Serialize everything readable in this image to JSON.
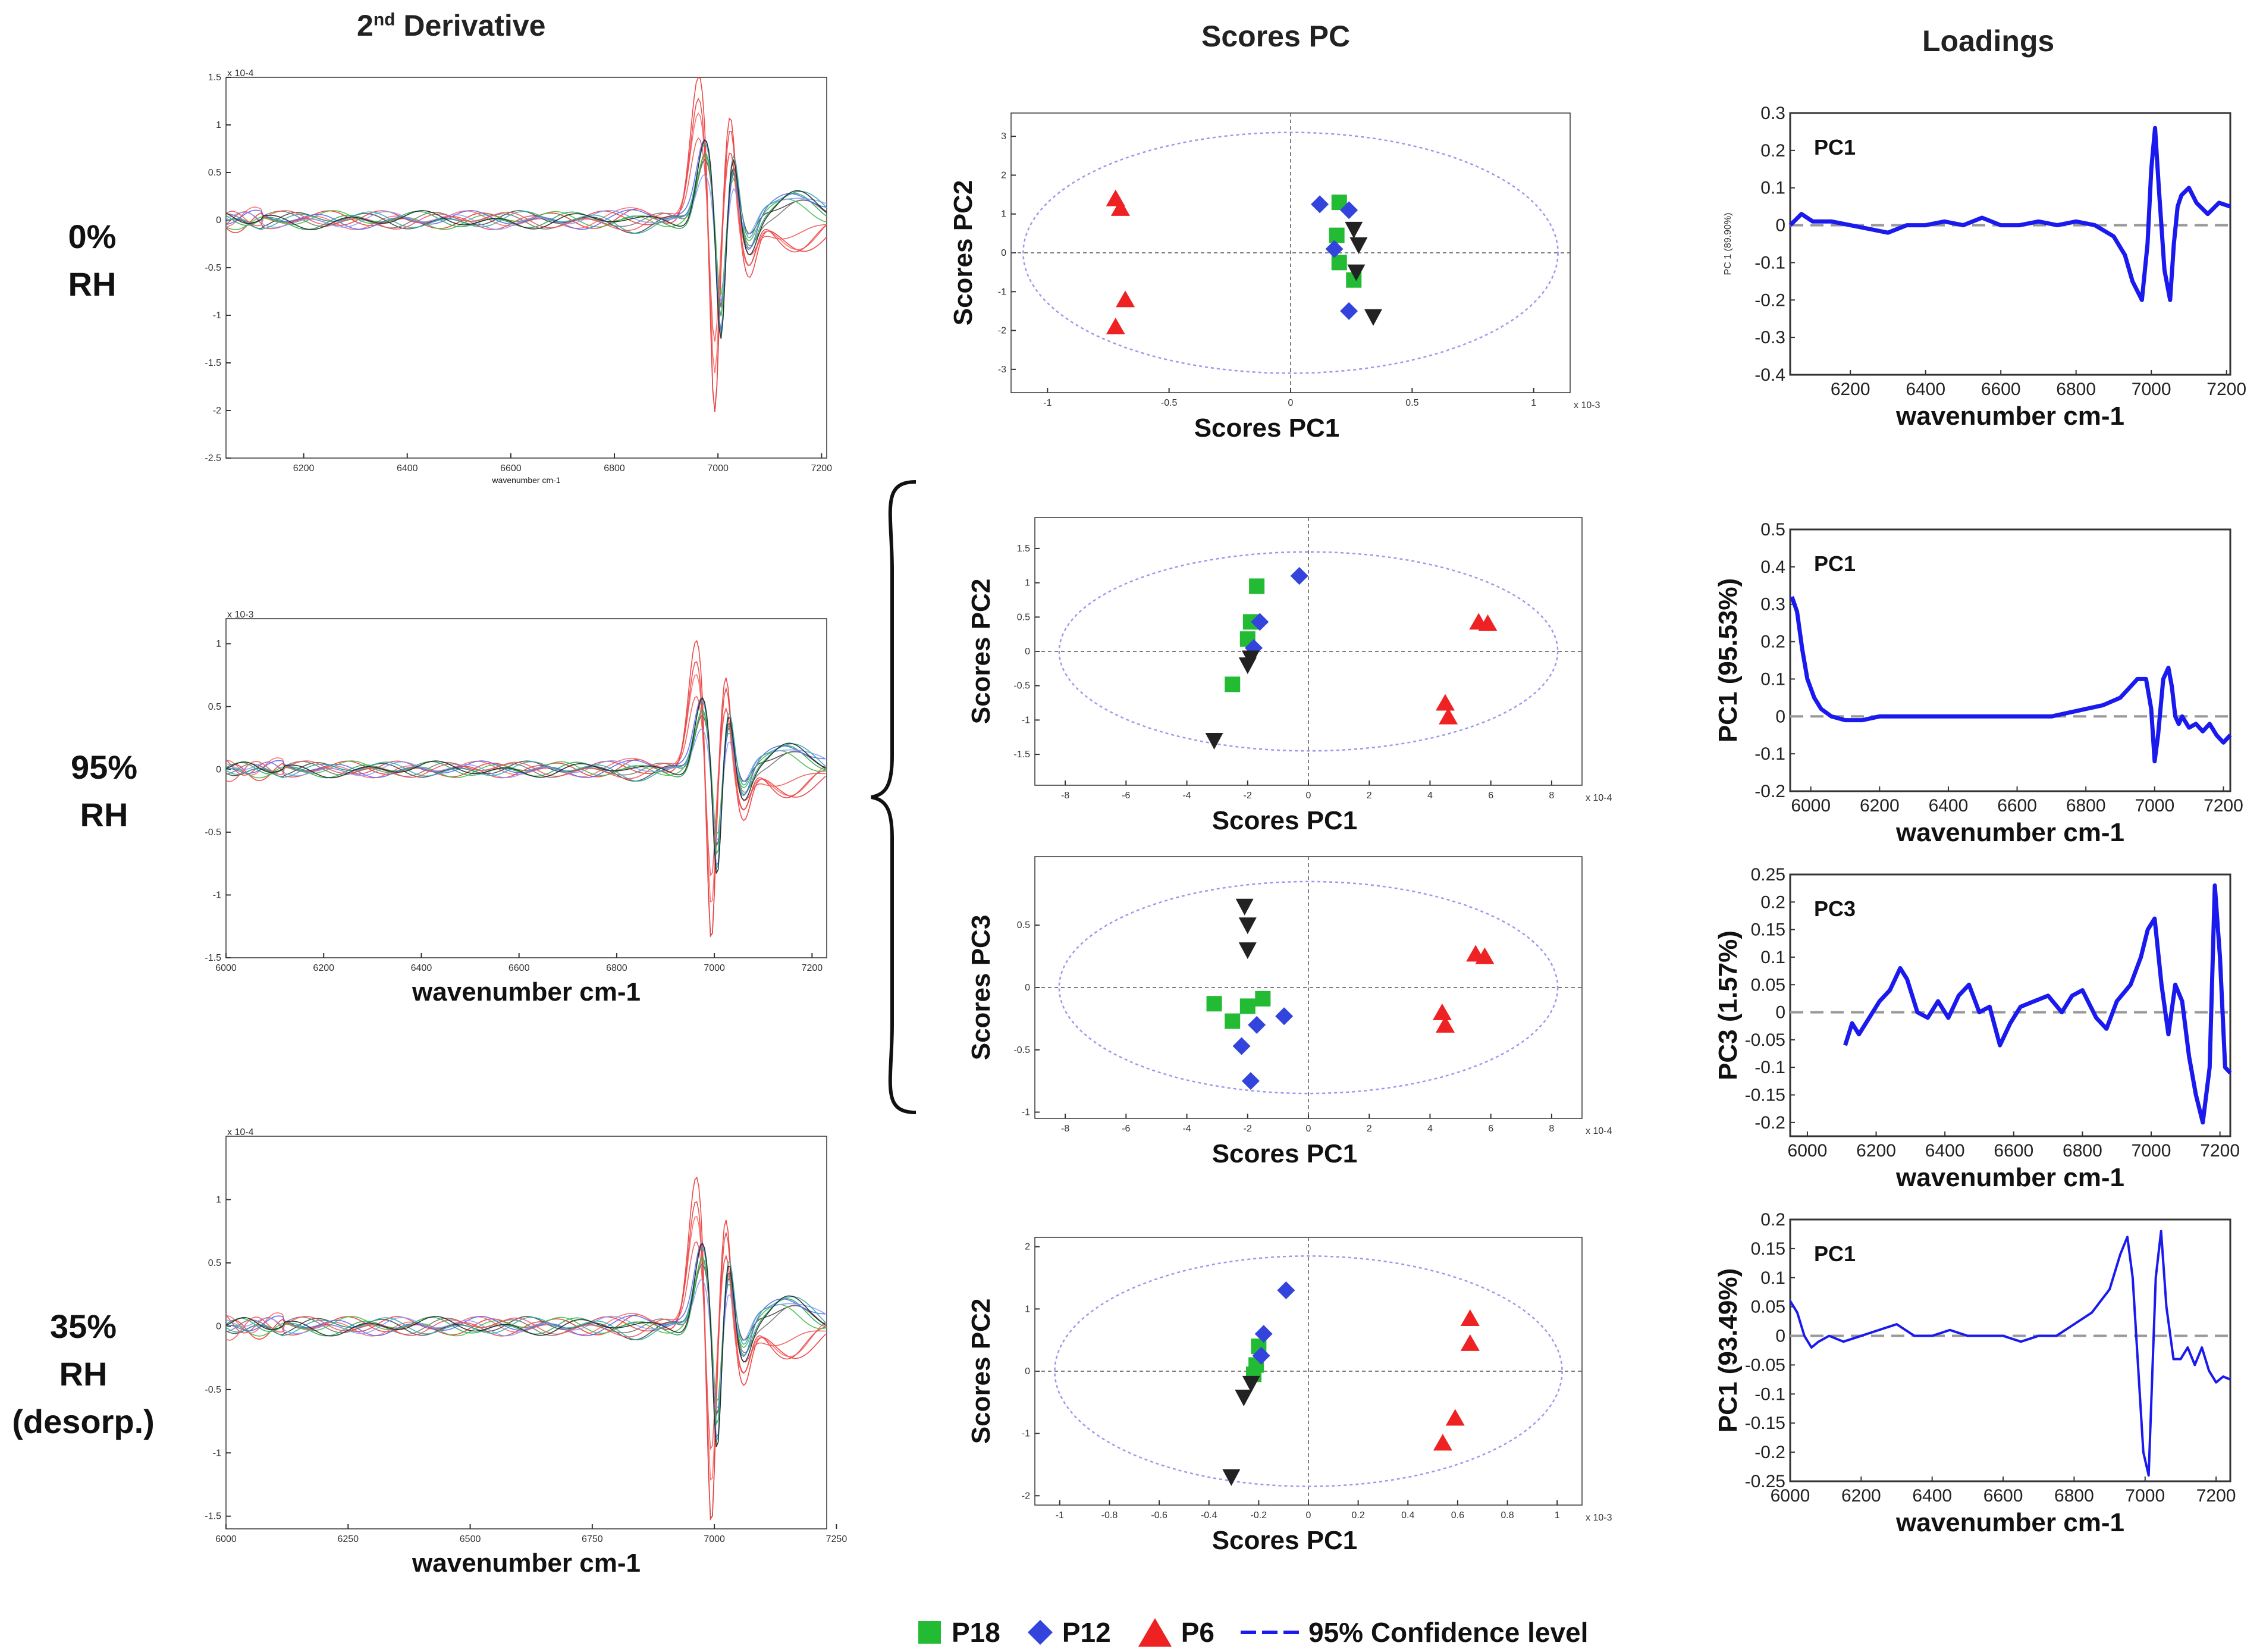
{
  "headers": {
    "derivative_prefix": "2",
    "derivative_sup": "nd",
    "derivative_suffix": " Derivative",
    "scores": "Scores PC",
    "loadings": "Loadings"
  },
  "rows": [
    {
      "line1": "0%",
      "line2": "RH",
      "line3": ""
    },
    {
      "line1": "95%",
      "line2": "RH",
      "line3": ""
    },
    {
      "line1": "35%",
      "line2": "RH",
      "line3": "(desorp.)"
    }
  ],
  "legend": {
    "p18": "P18",
    "p12": "P12",
    "p6": "P6",
    "conf": "95% Confidence level"
  },
  "colors": {
    "p18": "#22bb33",
    "p12": "#3344dd",
    "p6": "#ee2222",
    "black": "#222222",
    "loading": "#1a1aee",
    "ellipse": "#9999ee"
  },
  "chart_data": [
    {
      "id": "d1",
      "type": "line",
      "title": "2nd Derivative 0% RH",
      "xlabel": "wavenumber cm-1",
      "ylabel": "",
      "xlim": [
        6050,
        7210
      ],
      "ylim": [
        -2.5,
        1.5
      ],
      "xticks": [
        "6200",
        "6400",
        "6600",
        "6800",
        "7000",
        "7200"
      ],
      "yticks": [
        "1.5",
        "1",
        "0.5",
        "0",
        "-0.5",
        "-1",
        "-1.5",
        "-2",
        "-2.5"
      ],
      "exponent": "x 10-4"
    },
    {
      "id": "d2",
      "type": "line",
      "title": "2nd Derivative 95% RH",
      "xlabel": "wavenumber cm-1",
      "ylabel": "",
      "xlim": [
        6000,
        7230
      ],
      "ylim": [
        -1.5,
        1.2
      ],
      "xticks": [
        "6000",
        "6200",
        "6400",
        "6600",
        "6800",
        "7000",
        "7200"
      ],
      "yticks": [
        "1",
        "0.5",
        "0",
        "-0.5",
        "-1",
        "-1.5"
      ],
      "exponent": "x 10-3"
    },
    {
      "id": "d3",
      "type": "line",
      "title": "2nd Derivative 35% RH (desorp.)",
      "xlabel": "wavenumber cm-1",
      "ylabel": "",
      "xlim": [
        6000,
        7230
      ],
      "ylim": [
        -1.6,
        1.5
      ],
      "xticks": [
        "6000",
        "6250",
        "6500",
        "6750",
        "7000",
        "7250"
      ],
      "yticks": [
        "1",
        "0.5",
        "0",
        "-0.5",
        "-1",
        "-1.5"
      ],
      "exponent": "x 10-4"
    },
    {
      "id": "s1",
      "type": "scatter",
      "title": "Scores 0% RH",
      "xlabel": "Scores PC1",
      "ylabel": "Scores PC2",
      "xlim": [
        -1.15,
        1.15
      ],
      "ylim": [
        -3.6,
        3.6
      ],
      "xticks": [
        "-1",
        "-0.5",
        "0",
        "0.5",
        "1"
      ],
      "yticks": [
        "3",
        "2",
        "1",
        "0",
        "-1",
        "-2",
        "-3"
      ],
      "exponent": "x 10-3",
      "series": [
        {
          "name": "P6",
          "marker": "tri-up",
          "points": [
            [
              -0.72,
              1.4
            ],
            [
              -0.7,
              1.15
            ],
            [
              -0.68,
              -1.2
            ],
            [
              -0.72,
              -1.9
            ]
          ]
        },
        {
          "name": "P18",
          "marker": "square",
          "points": [
            [
              0.2,
              1.3
            ],
            [
              0.19,
              0.45
            ],
            [
              0.2,
              -0.25
            ],
            [
              0.26,
              -0.7
            ]
          ]
        },
        {
          "name": "P12",
          "marker": "diamond",
          "points": [
            [
              0.12,
              1.25
            ],
            [
              0.24,
              1.1
            ],
            [
              0.18,
              0.1
            ],
            [
              0.24,
              -1.5
            ]
          ]
        },
        {
          "name": "black",
          "marker": "tri-down",
          "points": [
            [
              0.26,
              0.6
            ],
            [
              0.28,
              0.2
            ],
            [
              0.27,
              -0.5
            ],
            [
              0.34,
              -1.65
            ]
          ]
        }
      ],
      "ellipse": {
        "rx": 1.1,
        "ry": 3.1
      }
    },
    {
      "id": "s2",
      "type": "scatter",
      "title": "Scores 95% RH PC1-PC2",
      "xlabel": "Scores PC1",
      "ylabel": "Scores PC2",
      "xlim": [
        -9,
        9
      ],
      "ylim": [
        -1.95,
        1.95
      ],
      "xticks": [
        "-8",
        "-6",
        "-4",
        "-2",
        "0",
        "2",
        "4",
        "6",
        "8"
      ],
      "yticks": [
        "1.5",
        "1",
        "0.5",
        "0",
        "-0.5",
        "-1",
        "-1.5"
      ],
      "exponent": "x 10-4",
      "series": [
        {
          "name": "P6",
          "marker": "tri-up",
          "points": [
            [
              5.6,
              0.43
            ],
            [
              5.9,
              0.41
            ],
            [
              4.5,
              -0.75
            ],
            [
              4.6,
              -0.95
            ]
          ]
        },
        {
          "name": "P18",
          "marker": "square",
          "points": [
            [
              -1.7,
              0.95
            ],
            [
              -1.9,
              0.43
            ],
            [
              -2.0,
              0.18
            ],
            [
              -2.5,
              -0.48
            ]
          ]
        },
        {
          "name": "P12",
          "marker": "diamond",
          "points": [
            [
              -0.3,
              1.1
            ],
            [
              -1.6,
              0.43
            ],
            [
              -1.8,
              0.05
            ]
          ]
        },
        {
          "name": "black",
          "marker": "tri-down",
          "points": [
            [
              -1.9,
              -0.1
            ],
            [
              -2.0,
              -0.2
            ],
            [
              -3.1,
              -1.3
            ]
          ]
        }
      ],
      "ellipse": {
        "rx": 8.2,
        "ry": 1.45
      }
    },
    {
      "id": "s3",
      "type": "scatter",
      "title": "Scores 95% RH PC1-PC3",
      "xlabel": "Scores PC1",
      "ylabel": "Scores PC3",
      "xlim": [
        -9,
        9
      ],
      "ylim": [
        -1.05,
        1.05
      ],
      "xticks": [
        "-8",
        "-6",
        "-4",
        "-2",
        "0",
        "2",
        "4",
        "6",
        "8"
      ],
      "yticks": [
        "0.5",
        "0",
        "-0.5",
        "-1"
      ],
      "exponent": "x 10-4",
      "series": [
        {
          "name": "P6",
          "marker": "tri-up",
          "points": [
            [
              5.5,
              0.27
            ],
            [
              5.8,
              0.25
            ],
            [
              4.4,
              -0.2
            ],
            [
              4.5,
              -0.3
            ]
          ]
        },
        {
          "name": "P18",
          "marker": "square",
          "points": [
            [
              -3.1,
              -0.13
            ],
            [
              -2.5,
              -0.27
            ],
            [
              -2.0,
              -0.15
            ],
            [
              -1.5,
              -0.09
            ]
          ]
        },
        {
          "name": "P12",
          "marker": "diamond",
          "points": [
            [
              -1.7,
              -0.3
            ],
            [
              -0.8,
              -0.23
            ],
            [
              -2.2,
              -0.47
            ],
            [
              -1.9,
              -0.75
            ]
          ]
        },
        {
          "name": "black",
          "marker": "tri-down",
          "points": [
            [
              -2.1,
              0.65
            ],
            [
              -2.0,
              0.5
            ],
            [
              -2.0,
              0.3
            ]
          ]
        }
      ],
      "ellipse": {
        "rx": 8.2,
        "ry": 0.85
      }
    },
    {
      "id": "s4",
      "type": "scatter",
      "title": "Scores 35% RH (desorp.)",
      "xlabel": "Scores PC1",
      "ylabel": "Scores PC2",
      "xlim": [
        -1.1,
        1.1
      ],
      "ylim": [
        -2.15,
        2.15
      ],
      "xticks": [
        "-1",
        "-0.8",
        "-0.6",
        "-0.4",
        "-0.2",
        "0",
        "0.2",
        "0.4",
        "0.6",
        "0.8",
        "1"
      ],
      "yticks": [
        "2",
        "1",
        "0",
        "-1",
        "-2"
      ],
      "exponent": "x 10-3",
      "series": [
        {
          "name": "P6",
          "marker": "tri-up",
          "points": [
            [
              0.65,
              0.85
            ],
            [
              0.65,
              0.45
            ],
            [
              0.59,
              -0.75
            ],
            [
              0.54,
              -1.15
            ]
          ]
        },
        {
          "name": "P18",
          "marker": "square",
          "points": [
            [
              -0.2,
              0.4
            ],
            [
              -0.21,
              0.1
            ],
            [
              -0.22,
              -0.05
            ]
          ]
        },
        {
          "name": "P12",
          "marker": "diamond",
          "points": [
            [
              -0.09,
              1.3
            ],
            [
              -0.18,
              0.6
            ],
            [
              -0.19,
              0.25
            ]
          ]
        },
        {
          "name": "black",
          "marker": "tri-down",
          "points": [
            [
              -0.23,
              -0.2
            ],
            [
              -0.26,
              -0.42
            ],
            [
              -0.31,
              -1.7
            ]
          ]
        }
      ],
      "ellipse": {
        "rx": 1.02,
        "ry": 1.85
      }
    },
    {
      "id": "l1",
      "type": "line",
      "title": "PC1",
      "xlabel": "wavenumber cm-1",
      "ylabel": "PC 1 (89.90%)",
      "xlim": [
        6040,
        7210
      ],
      "ylim": [
        -0.4,
        0.3
      ],
      "xticks": [
        "6200",
        "6400",
        "6600",
        "6800",
        "7000",
        "7200"
      ],
      "yticks": [
        "0.3",
        "0.2",
        "0.1",
        "0",
        "-0.1",
        "-0.2",
        "-0.3",
        "-0.4"
      ],
      "x": [
        6040,
        6070,
        6100,
        6150,
        6200,
        6250,
        6300,
        6350,
        6400,
        6450,
        6500,
        6550,
        6600,
        6650,
        6700,
        6750,
        6800,
        6850,
        6900,
        6930,
        6950,
        6975,
        6990,
        7000,
        7010,
        7020,
        7035,
        7050,
        7060,
        7070,
        7080,
        7100,
        7120,
        7150,
        7180,
        7210
      ],
      "y": [
        0.0,
        0.03,
        0.01,
        0.01,
        0.0,
        -0.01,
        -0.02,
        0.0,
        0.0,
        0.01,
        0.0,
        0.02,
        0.0,
        0.0,
        0.01,
        0.0,
        0.01,
        0.0,
        -0.03,
        -0.08,
        -0.15,
        -0.2,
        -0.05,
        0.15,
        0.26,
        0.1,
        -0.12,
        -0.2,
        -0.05,
        0.05,
        0.08,
        0.1,
        0.06,
        0.03,
        0.06,
        0.05
      ]
    },
    {
      "id": "l2",
      "type": "line",
      "title": "PC1",
      "xlabel": "wavenumber cm-1",
      "ylabel": "PC1 (95.53%)",
      "xlim": [
        5940,
        7220
      ],
      "ylim": [
        -0.2,
        0.5
      ],
      "xticks": [
        "6000",
        "6200",
        "6400",
        "6600",
        "6800",
        "7000",
        "7200"
      ],
      "yticks": [
        "0.5",
        "0.4",
        "0.3",
        "0.2",
        "0.1",
        "0",
        "-0.1",
        "-0.2"
      ],
      "x": [
        5945,
        5960,
        5975,
        5990,
        6010,
        6030,
        6060,
        6100,
        6150,
        6200,
        6300,
        6400,
        6500,
        6600,
        6700,
        6800,
        6850,
        6900,
        6950,
        6975,
        6990,
        7000,
        7010,
        7025,
        7040,
        7050,
        7060,
        7070,
        7080,
        7100,
        7120,
        7140,
        7160,
        7180,
        7200,
        7220
      ],
      "y": [
        0.32,
        0.28,
        0.18,
        0.1,
        0.05,
        0.02,
        0.0,
        -0.01,
        -0.01,
        0.0,
        0.0,
        0.0,
        0.0,
        0.0,
        0.0,
        0.02,
        0.03,
        0.05,
        0.1,
        0.1,
        0.02,
        -0.12,
        -0.05,
        0.1,
        0.13,
        0.08,
        0.0,
        -0.02,
        0.0,
        -0.03,
        -0.02,
        -0.04,
        -0.02,
        -0.05,
        -0.07,
        -0.05
      ]
    },
    {
      "id": "l3",
      "type": "line",
      "title": "PC3",
      "xlabel": "wavenumber cm-1",
      "ylabel": "PC3 (1.57%)",
      "xlim": [
        5950,
        7230
      ],
      "ylim": [
        -0.225,
        0.25
      ],
      "xticks": [
        "6000",
        "6200",
        "6400",
        "6600",
        "6800",
        "7000",
        "7200"
      ],
      "yticks": [
        "0.25",
        "0.2",
        "0.15",
        "0.1",
        "0.05",
        "0",
        "-0.05",
        "-0.1",
        "-0.15",
        "-0.2"
      ],
      "x": [
        6110,
        6130,
        6150,
        6170,
        6190,
        6210,
        6240,
        6270,
        6290,
        6320,
        6350,
        6380,
        6410,
        6440,
        6470,
        6500,
        6530,
        6560,
        6590,
        6620,
        6660,
        6700,
        6740,
        6770,
        6800,
        6840,
        6870,
        6900,
        6940,
        6970,
        6990,
        7010,
        7030,
        7050,
        7070,
        7090,
        7110,
        7130,
        7150,
        7170,
        7185,
        7200,
        7215,
        7230
      ],
      "y": [
        -0.06,
        -0.02,
        -0.04,
        -0.02,
        0.0,
        0.02,
        0.04,
        0.08,
        0.06,
        0.0,
        -0.01,
        0.02,
        -0.01,
        0.03,
        0.05,
        0.0,
        0.01,
        -0.06,
        -0.02,
        0.01,
        0.02,
        0.03,
        0.0,
        0.03,
        0.04,
        -0.01,
        -0.03,
        0.02,
        0.05,
        0.1,
        0.15,
        0.17,
        0.05,
        -0.04,
        0.05,
        0.02,
        -0.08,
        -0.15,
        -0.2,
        -0.1,
        0.23,
        0.1,
        -0.1,
        -0.11
      ]
    },
    {
      "id": "l4",
      "type": "line",
      "title": "PC1",
      "xlabel": "wavenumber cm-1",
      "ylabel": "PC1 (93.49%)",
      "xlim": [
        6000,
        7240
      ],
      "ylim": [
        -0.25,
        0.2
      ],
      "xticks": [
        "6000",
        "6200",
        "6400",
        "6600",
        "6800",
        "7000",
        "7200"
      ],
      "yticks": [
        "0.2",
        "0.15",
        "0.1",
        "0.05",
        "0",
        "-0.05",
        "-0.1",
        "-0.15",
        "-0.2",
        "-0.25"
      ],
      "x": [
        6000,
        6020,
        6040,
        6060,
        6080,
        6110,
        6150,
        6200,
        6250,
        6300,
        6350,
        6400,
        6450,
        6500,
        6550,
        6600,
        6650,
        6700,
        6750,
        6800,
        6850,
        6900,
        6930,
        6950,
        6965,
        6980,
        6995,
        7010,
        7030,
        7045,
        7060,
        7080,
        7100,
        7120,
        7140,
        7160,
        7180,
        7200,
        7220,
        7240
      ],
      "y": [
        0.06,
        0.04,
        0.0,
        -0.02,
        -0.01,
        0.0,
        -0.01,
        0.0,
        0.01,
        0.02,
        0.0,
        0.0,
        0.01,
        0.0,
        0.0,
        0.0,
        -0.01,
        0.0,
        0.0,
        0.02,
        0.04,
        0.08,
        0.14,
        0.17,
        0.1,
        -0.05,
        -0.2,
        -0.24,
        0.1,
        0.18,
        0.05,
        -0.04,
        -0.04,
        -0.02,
        -0.05,
        -0.02,
        -0.06,
        -0.08,
        -0.07,
        -0.075
      ]
    }
  ]
}
